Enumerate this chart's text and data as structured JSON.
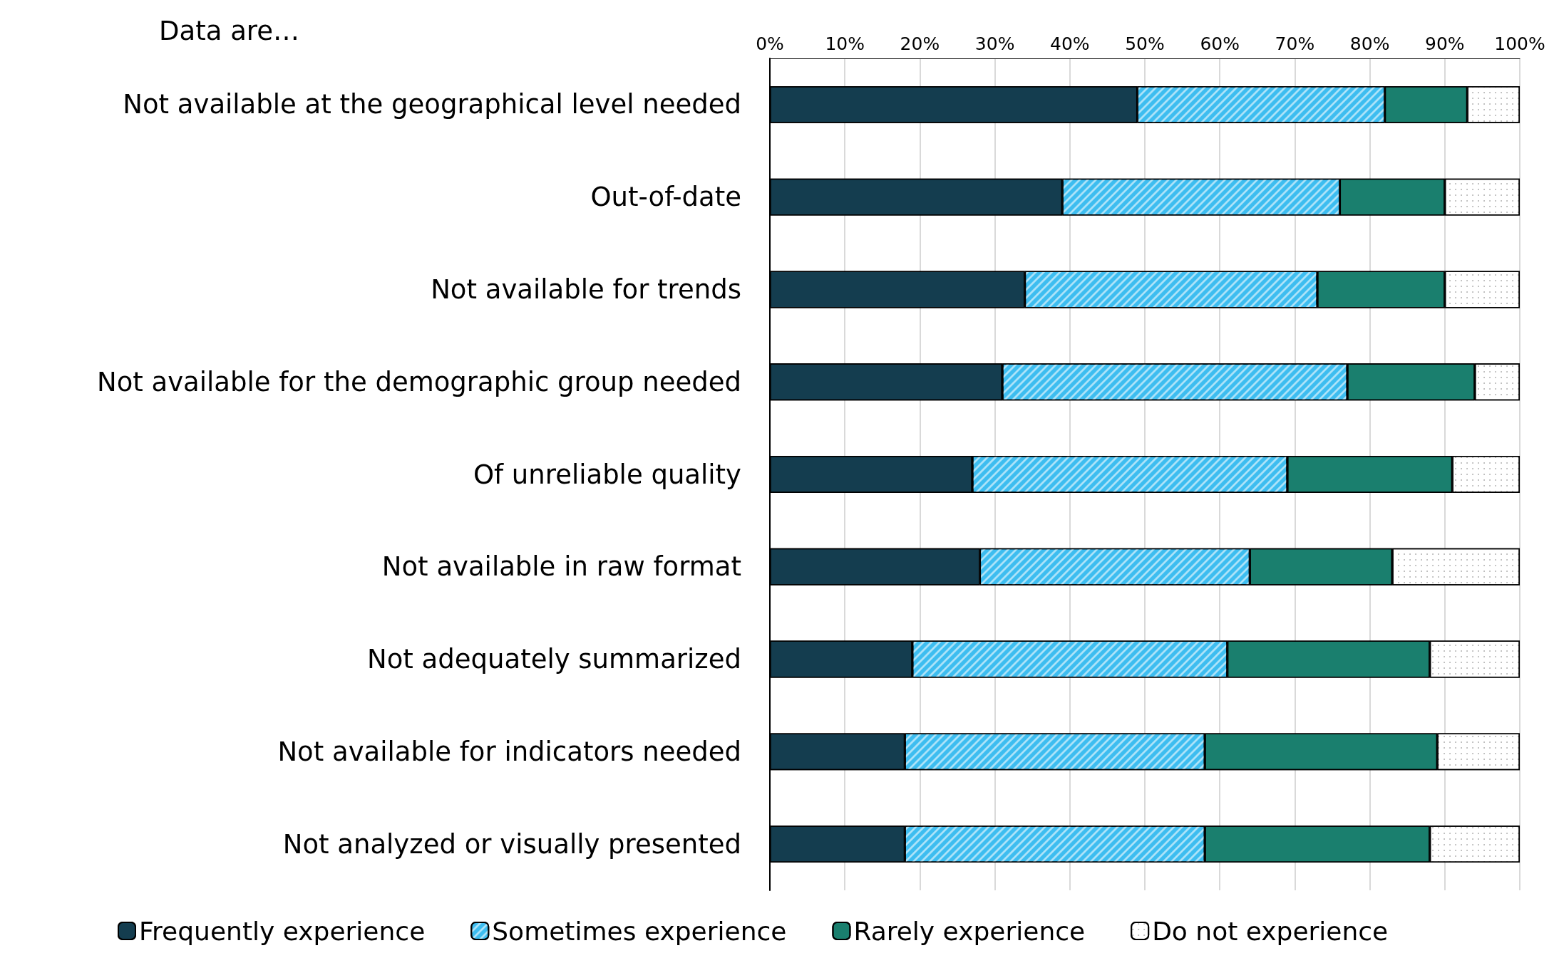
{
  "chart_data": {
    "type": "bar",
    "orientation": "horizontal",
    "stacked": true,
    "ylabel": "Data are…",
    "categories": [
      "Not available at the geographical level needed",
      "Out-of-date",
      "Not available for trends",
      "Not available for the demographic group needed",
      "Of unreliable quality",
      "Not available in raw format",
      "Not adequately summarized",
      "Not available for indicators needed",
      "Not analyzed or visually presented"
    ],
    "series": [
      {
        "name": "Frequently experience",
        "color": "#143d4f",
        "values": [
          49,
          39,
          34,
          31,
          27,
          28,
          19,
          18,
          18
        ]
      },
      {
        "name": "Sometimes experience",
        "color": "#3dbdf0",
        "values": [
          33,
          37,
          39,
          46,
          42,
          36,
          42,
          40,
          40
        ]
      },
      {
        "name": "Rarely experience",
        "color": "#1a7f6e",
        "values": [
          11,
          14,
          17,
          17,
          22,
          19,
          27,
          31,
          30
        ]
      },
      {
        "name": "Do not experience",
        "color": "#ffffff",
        "values": [
          7,
          10,
          10,
          6,
          9,
          17,
          12,
          11,
          12
        ]
      }
    ],
    "xlim": [
      0,
      100
    ],
    "xticks": [
      {
        "value": 0,
        "label": "0%"
      },
      {
        "value": 10,
        "label": "10%"
      },
      {
        "value": 20,
        "label": "20%"
      },
      {
        "value": 30,
        "label": "30%"
      },
      {
        "value": 40,
        "label": "40%"
      },
      {
        "value": 50,
        "label": "50%"
      },
      {
        "value": 60,
        "label": "60%"
      },
      {
        "value": 70,
        "label": "70%"
      },
      {
        "value": 80,
        "label": "80%"
      },
      {
        "value": 90,
        "label": "90%"
      },
      {
        "value": 100,
        "label": "100%"
      }
    ],
    "grid": "x",
    "legend": "bottom"
  }
}
